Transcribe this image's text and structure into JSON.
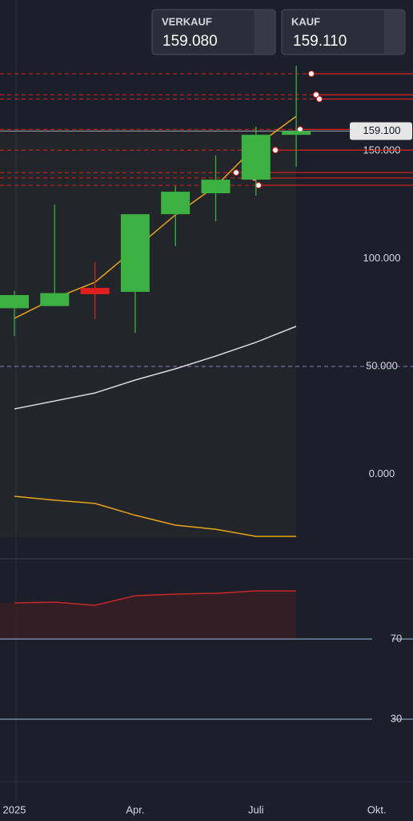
{
  "quotes": {
    "sell_label": "VERKAUF",
    "sell": "159.080",
    "buy_label": "KAUF",
    "buy": "159.110"
  },
  "chart_data": [
    {
      "type": "candlestick",
      "categories": [
        "2025",
        null,
        null,
        "Apr.",
        null,
        null,
        "Juli",
        null,
        null,
        "Okt."
      ],
      "open": [
        77,
        78,
        86.4,
        84.6,
        120.6,
        130.3,
        136.6,
        157.4,
        null,
        null
      ],
      "high": [
        85,
        125,
        98.3,
        120.6,
        133.6,
        147.8,
        161.2,
        189.4,
        null,
        null
      ],
      "low": [
        64,
        78.6,
        72,
        65.6,
        105.8,
        117.3,
        129.2,
        142.6,
        null,
        null
      ],
      "close": [
        83.1,
        84,
        83.5,
        120.6,
        131,
        136.6,
        157.4,
        159.1,
        null,
        null
      ],
      "up_color": "#3cb043",
      "down_color": "#e0201e",
      "lines": [
        {
          "color": "#e8a317",
          "values": [
            72.3,
            81.6,
            89,
            104.6,
            120.3,
            133.6,
            152.2,
            166,
            null,
            null
          ]
        },
        {
          "color": "#d8d8d8",
          "values": [
            30.3,
            34,
            37.7,
            43.7,
            48.9,
            54.8,
            61.2,
            68.6,
            null,
            null
          ]
        },
        {
          "color": "#e8a317",
          "values": [
            -10.2,
            -12,
            -13.5,
            -19,
            -23.6,
            -25.5,
            -28.8,
            -28.8,
            null,
            null
          ]
        }
      ],
      "levels": [
        185.7,
        176,
        174,
        159.9,
        150.3,
        139.9,
        137.4,
        134
      ],
      "level_color": "#e0201e",
      "reference_line": {
        "value": 50,
        "color": "#8e7cc3"
      },
      "last_price": {
        "value": 159.1,
        "label": "159.100"
      },
      "ylim": [
        -39.2,
        219.9
      ],
      "yticks": [
        {
          "value": 0,
          "label": "0.000"
        },
        {
          "value": 50,
          "label": "50.000"
        },
        {
          "value": 100,
          "label": "100.000"
        },
        {
          "value": 150,
          "label": "150.000"
        }
      ]
    },
    {
      "type": "line",
      "values": [
        88,
        88.4,
        86.8,
        91.6,
        92.4,
        92.8,
        94,
        94,
        null,
        null
      ],
      "color": "#c62828",
      "ylim": [
        -1.2,
        110
      ],
      "yticks": [
        30,
        70
      ],
      "grid": true
    }
  ]
}
